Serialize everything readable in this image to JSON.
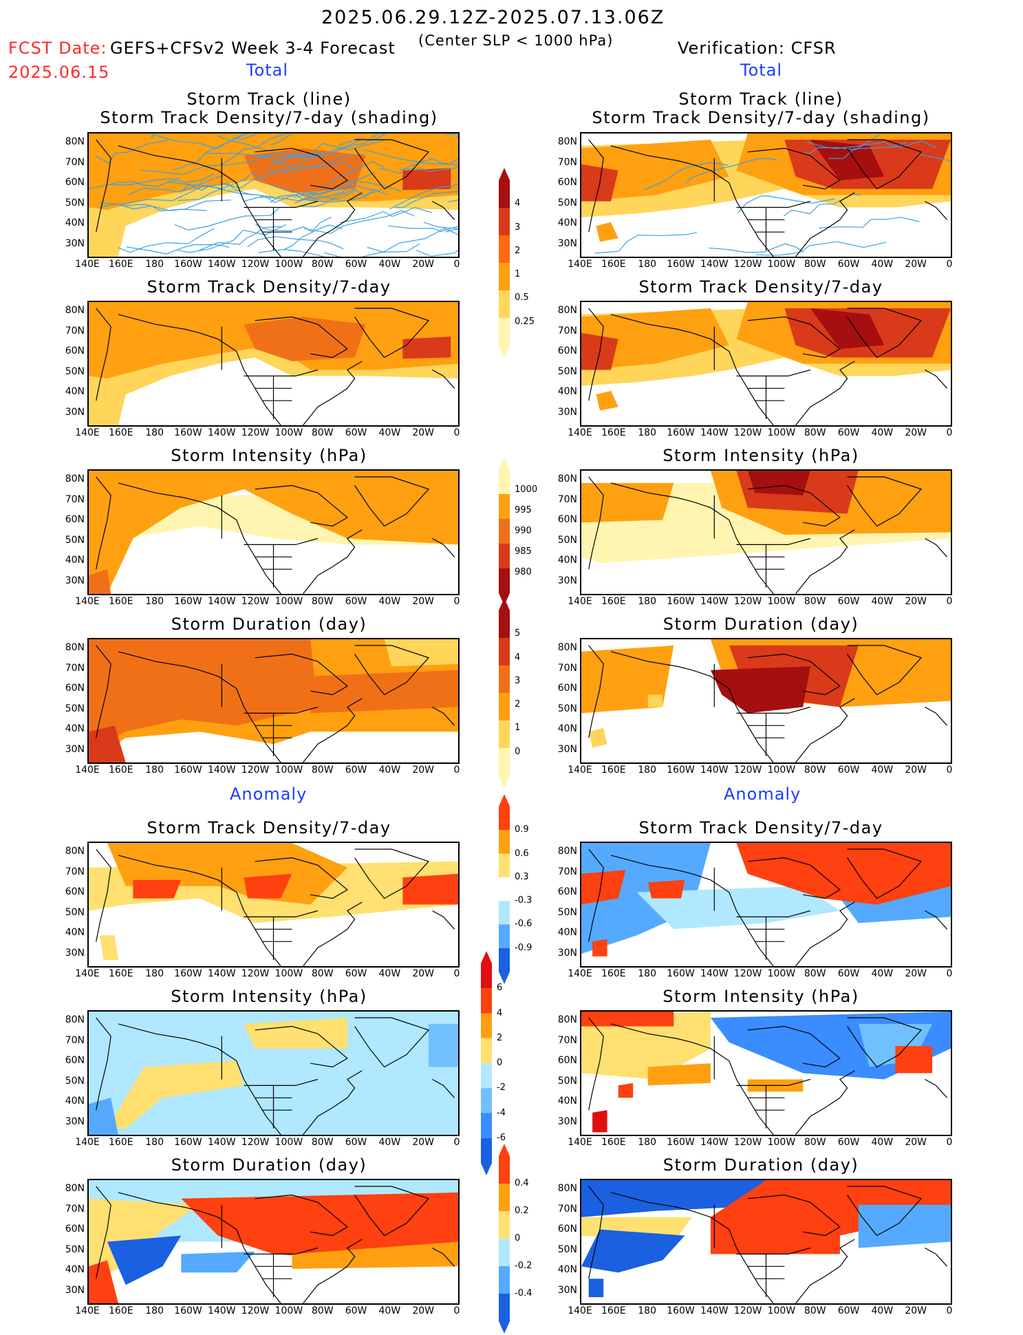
{
  "header": {
    "date_range": "2025.06.29.12Z-2025.07.13.06Z",
    "subtitle": "(Center SLP < 1000 hPa)",
    "fcst_date_label": "FCST Date:",
    "fcst_date": "2025.06.15",
    "left_model": "GEFS+CFSv2 Week 3-4 Forecast",
    "right_verification": "Verification: CFSR"
  },
  "sections": {
    "total_left": "Total",
    "total_right": "Total",
    "anomaly_left": "Anomaly",
    "anomaly_right": "Anomaly"
  },
  "panel_titles": {
    "track_line": "Storm Track (line)",
    "track_shading": "Storm Track Density/7-day (shading)",
    "density": "Storm Track Density/7-day",
    "intensity": "Storm Intensity (hPa)",
    "duration": "Storm Duration (day)"
  },
  "axes": {
    "x_ticks": [
      "140E",
      "160E",
      "180",
      "160W",
      "140W",
      "120W",
      "100W",
      "80W",
      "60W",
      "40W",
      "20W",
      "0"
    ],
    "y_ticks": [
      "80N",
      "70N",
      "60N",
      "50N",
      "40N",
      "30N"
    ]
  },
  "colorbars": [
    {
      "name": "total-density",
      "labels": [
        "4",
        "3",
        "2",
        "1",
        "0.5",
        "0.25"
      ],
      "colors": [
        "#a50f0f",
        "#d93a1a",
        "#ff6a10",
        "#ffa010",
        "#ffd55a",
        "#fff5b0"
      ]
    },
    {
      "name": "total-intensity",
      "labels": [
        "1000",
        "995",
        "990",
        "985",
        "980"
      ],
      "colors": [
        "#fff5b0",
        "#ffa010",
        "#f07018",
        "#d93a1a",
        "#a50f0f"
      ]
    },
    {
      "name": "total-duration",
      "labels": [
        "5",
        "4",
        "3",
        "2",
        "1",
        "0"
      ],
      "colors": [
        "#a50f0f",
        "#d93a1a",
        "#f07018",
        "#ffa010",
        "#ffd55a",
        "#fff5b0"
      ]
    },
    {
      "name": "anomaly-density",
      "labels": [
        "0.9",
        "0.6",
        "0.3",
        "-0.3",
        "-0.6",
        "-0.9"
      ],
      "colors": [
        "#ff4010",
        "#ffa010",
        "#ffe070",
        "#ffffff",
        "#b0e8ff",
        "#55aaff",
        "#1a60e0"
      ]
    },
    {
      "name": "anomaly-intensity",
      "labels": [
        "6",
        "4",
        "2",
        "0",
        "-2",
        "-4",
        "-6"
      ],
      "colors": [
        "#e01010",
        "#ff4010",
        "#ffa010",
        "#ffe070",
        "#b0e8ff",
        "#70c0ff",
        "#3a8cff",
        "#1a60e0"
      ]
    },
    {
      "name": "anomaly-duration",
      "labels": [
        "0.4",
        "0.2",
        "0",
        "-0.2",
        "-0.4"
      ],
      "colors": [
        "#ff4010",
        "#ffa010",
        "#ffe070",
        "#b0e8ff",
        "#55aaff",
        "#1a60e0"
      ]
    }
  ]
}
